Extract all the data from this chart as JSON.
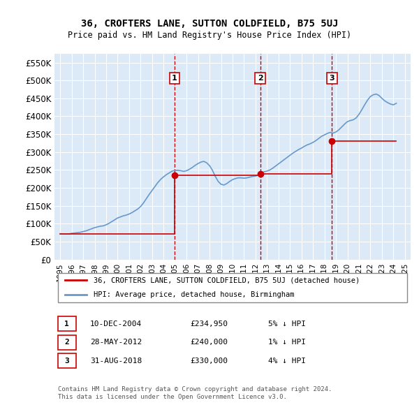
{
  "title": "36, CROFTERS LANE, SUTTON COLDFIELD, B75 5UJ",
  "subtitle": "Price paid vs. HM Land Registry's House Price Index (HPI)",
  "background_color": "#dce9f7",
  "plot_bg_color": "#dce9f7",
  "ylabel_color": "#000000",
  "ylim": [
    0,
    575000
  ],
  "yticks": [
    0,
    50000,
    100000,
    150000,
    200000,
    250000,
    300000,
    350000,
    400000,
    450000,
    500000,
    550000
  ],
  "ytick_labels": [
    "£0",
    "£50K",
    "£100K",
    "£150K",
    "£200K",
    "£250K",
    "£300K",
    "£350K",
    "£400K",
    "£450K",
    "£500K",
    "£550K"
  ],
  "sale_dates_num": [
    2004.94,
    2012.41,
    2018.66
  ],
  "sale_prices": [
    234950,
    240000,
    330000
  ],
  "sale_labels": [
    "1",
    "2",
    "3"
  ],
  "vline_color": "#cc0000",
  "vline_style": "--",
  "marker_color": "#cc0000",
  "hpi_color": "#6699cc",
  "price_line_color": "#cc0000",
  "legend_items": [
    {
      "label": "36, CROFTERS LANE, SUTTON COLDFIELD, B75 5UJ (detached house)",
      "color": "#cc0000"
    },
    {
      "label": "HPI: Average price, detached house, Birmingham",
      "color": "#6699cc"
    }
  ],
  "table_rows": [
    {
      "label": "1",
      "date": "10-DEC-2004",
      "price": "£234,950",
      "change": "5% ↓ HPI"
    },
    {
      "label": "2",
      "date": "28-MAY-2012",
      "price": "£240,000",
      "change": "1% ↓ HPI"
    },
    {
      "label": "3",
      "date": "31-AUG-2018",
      "price": "£330,000",
      "change": "4% ↓ HPI"
    }
  ],
  "footer": "Contains HM Land Registry data © Crown copyright and database right 2024.\nThis data is licensed under the Open Government Licence v3.0.",
  "hpi_data": {
    "years": [
      1995.0,
      1995.25,
      1995.5,
      1995.75,
      1996.0,
      1996.25,
      1996.5,
      1996.75,
      1997.0,
      1997.25,
      1997.5,
      1997.75,
      1998.0,
      1998.25,
      1998.5,
      1998.75,
      1999.0,
      1999.25,
      1999.5,
      1999.75,
      2000.0,
      2000.25,
      2000.5,
      2000.75,
      2001.0,
      2001.25,
      2001.5,
      2001.75,
      2002.0,
      2002.25,
      2002.5,
      2002.75,
      2003.0,
      2003.25,
      2003.5,
      2003.75,
      2004.0,
      2004.25,
      2004.5,
      2004.75,
      2005.0,
      2005.25,
      2005.5,
      2005.75,
      2006.0,
      2006.25,
      2006.5,
      2006.75,
      2007.0,
      2007.25,
      2007.5,
      2007.75,
      2008.0,
      2008.25,
      2008.5,
      2008.75,
      2009.0,
      2009.25,
      2009.5,
      2009.75,
      2010.0,
      2010.25,
      2010.5,
      2010.75,
      2011.0,
      2011.25,
      2011.5,
      2011.75,
      2012.0,
      2012.25,
      2012.5,
      2012.75,
      2013.0,
      2013.25,
      2013.5,
      2013.75,
      2014.0,
      2014.25,
      2014.5,
      2014.75,
      2015.0,
      2015.25,
      2015.5,
      2015.75,
      2016.0,
      2016.25,
      2016.5,
      2016.75,
      2017.0,
      2017.25,
      2017.5,
      2017.75,
      2018.0,
      2018.25,
      2018.5,
      2018.75,
      2019.0,
      2019.25,
      2019.5,
      2019.75,
      2020.0,
      2020.25,
      2020.5,
      2020.75,
      2021.0,
      2021.25,
      2021.5,
      2021.75,
      2022.0,
      2022.25,
      2022.5,
      2022.75,
      2023.0,
      2023.25,
      2023.5,
      2023.75,
      2024.0,
      2024.25
    ],
    "values": [
      72000,
      71500,
      71000,
      71500,
      73000,
      74000,
      75000,
      76000,
      78000,
      80000,
      83000,
      86000,
      89000,
      91000,
      93000,
      94000,
      97000,
      101000,
      106000,
      111000,
      116000,
      119000,
      122000,
      124000,
      127000,
      131000,
      136000,
      141000,
      148000,
      158000,
      170000,
      182000,
      193000,
      204000,
      215000,
      224000,
      231000,
      237000,
      242000,
      247000,
      249000,
      249000,
      248000,
      246000,
      248000,
      252000,
      257000,
      263000,
      268000,
      272000,
      274000,
      270000,
      262000,
      249000,
      232000,
      218000,
      210000,
      208000,
      212000,
      218000,
      223000,
      226000,
      228000,
      228000,
      227000,
      228000,
      230000,
      232000,
      233000,
      236000,
      241000,
      245000,
      247000,
      250000,
      255000,
      261000,
      267000,
      273000,
      279000,
      285000,
      291000,
      297000,
      302000,
      307000,
      311000,
      316000,
      320000,
      323000,
      327000,
      332000,
      338000,
      344000,
      348000,
      352000,
      355000,
      353000,
      356000,
      362000,
      370000,
      378000,
      385000,
      388000,
      390000,
      395000,
      405000,
      418000,
      432000,
      445000,
      455000,
      460000,
      462000,
      458000,
      450000,
      443000,
      438000,
      434000,
      432000,
      436000
    ]
  },
  "price_data": {
    "years": [
      1995.0,
      2004.94,
      2004.94,
      2012.41,
      2012.41,
      2018.66,
      2018.66,
      2024.25
    ],
    "values": [
      72000,
      72000,
      234950,
      234950,
      240000,
      240000,
      330000,
      330000
    ]
  }
}
